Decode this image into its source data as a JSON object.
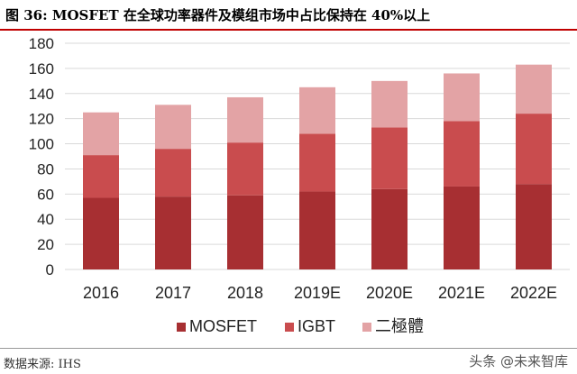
{
  "header": {
    "title": "图 36: MOSFET 在全球功率器件及模组市场中占比保持在 40%以上"
  },
  "footer": {
    "source": "数据来源: IHS",
    "watermark": "头条 @未来智库"
  },
  "colors": {
    "mosfet": "#a72f32",
    "igbt": "#c94c4e",
    "diode": "#e3a3a5",
    "title_rule": "#c00000"
  },
  "chart_data": {
    "type": "bar",
    "stacked": true,
    "title": "",
    "xlabel": "",
    "ylabel": "",
    "ylim": [
      0,
      180
    ],
    "yticks": [
      0,
      20,
      40,
      60,
      80,
      100,
      120,
      140,
      160,
      180
    ],
    "grid": true,
    "legend_position": "bottom",
    "categories": [
      "2016",
      "2017",
      "2018",
      "2019E",
      "2020E",
      "2021E",
      "2022E"
    ],
    "series": [
      {
        "name": "MOSFET",
        "values": [
          57,
          58,
          59,
          62,
          64,
          66,
          68
        ]
      },
      {
        "name": "IGBT",
        "values": [
          34,
          38,
          42,
          46,
          49,
          52,
          56
        ]
      },
      {
        "name": "二極體",
        "values": [
          34,
          35,
          36,
          37,
          37,
          38,
          39
        ]
      }
    ]
  }
}
